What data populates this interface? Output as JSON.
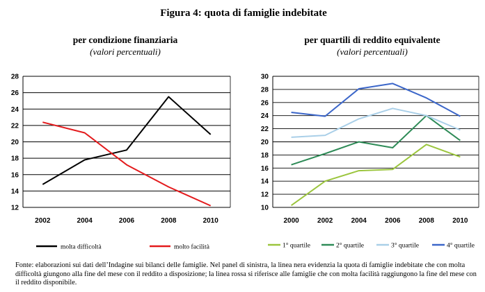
{
  "figure": {
    "title": "Figura 4: quota di famiglie indebitate",
    "source": "Fonte: elaborazioni sui dati dell’Indagine sui bilanci delle famiglie. Nel panel di sinistra, la linea nera evidenzia la quota di famiglie indebitate che con molta difficoltà giungono alla fine del mese con il reddito a disposizione; la linea rossa si riferisce alle famiglie che con molta facilità raggiungono la fine del mese con il reddito disponibile."
  },
  "chart_data": [
    {
      "type": "line",
      "title": "per condizione finanziaria",
      "subtitle": "(valori percentuali)",
      "xlabel": "",
      "ylabel": "",
      "x": [
        2002,
        2004,
        2006,
        2008,
        2010
      ],
      "xticks": [
        "2002",
        "2004",
        "2006",
        "2008",
        "2010"
      ],
      "ylim": [
        12,
        28
      ],
      "yticks": [
        "12",
        "14",
        "16",
        "18",
        "20",
        "22",
        "24",
        "26",
        "28"
      ],
      "grid": true,
      "legend_position": "bottom",
      "series": [
        {
          "name": "molta difficoltà",
          "color": "#000000",
          "values": [
            14.8,
            17.8,
            19.0,
            25.5,
            20.9
          ]
        },
        {
          "name": "molto facilità",
          "color": "#e31a1c",
          "values": [
            22.4,
            21.1,
            17.2,
            14.5,
            12.2
          ]
        }
      ]
    },
    {
      "type": "line",
      "title": "per quartili di reddito equivalente",
      "subtitle": "(valori percentuali)",
      "xlabel": "",
      "ylabel": "",
      "x": [
        2000,
        2002,
        2004,
        2006,
        2008,
        2010
      ],
      "xticks": [
        "2000",
        "2002",
        "2004",
        "2006",
        "2008",
        "2010"
      ],
      "ylim": [
        10,
        30
      ],
      "yticks": [
        "10",
        "12",
        "14",
        "16",
        "18",
        "20",
        "22",
        "24",
        "26",
        "28",
        "30"
      ],
      "grid": true,
      "legend_position": "bottom",
      "series": [
        {
          "name": "1° quartile",
          "color": "#9bc53d",
          "values": [
            10.3,
            14.0,
            15.6,
            15.8,
            19.6,
            17.7
          ]
        },
        {
          "name": "2° quartile",
          "color": "#2e8b57",
          "values": [
            16.5,
            18.2,
            20.0,
            19.1,
            24.0,
            20.2
          ]
        },
        {
          "name": "3° quartile",
          "color": "#a9cfe8",
          "values": [
            20.7,
            21.0,
            23.5,
            25.1,
            24.0,
            21.8
          ]
        },
        {
          "name": "4° quartile",
          "color": "#3b66c9",
          "values": [
            24.5,
            23.9,
            28.1,
            28.9,
            26.7,
            23.9
          ]
        }
      ]
    }
  ]
}
